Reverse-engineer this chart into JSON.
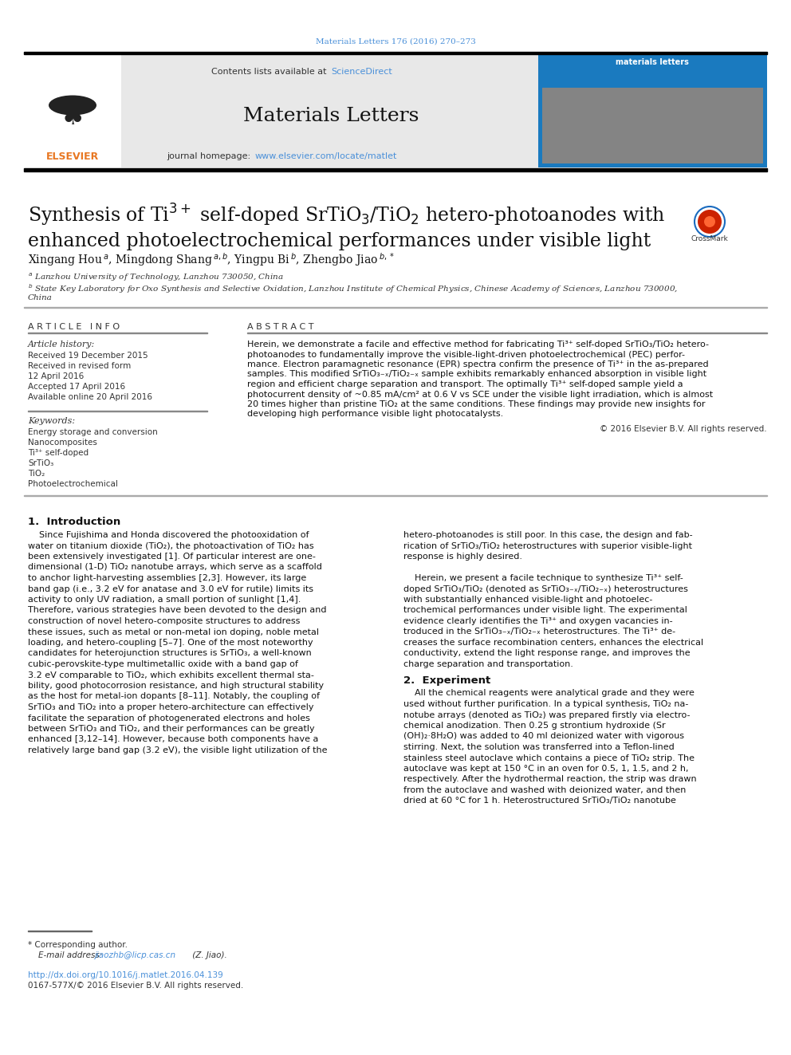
{
  "page_width": 9.92,
  "page_height": 13.23,
  "bg_color": "#ffffff",
  "header_citation": "Materials Letters 176 (2016) 270–273",
  "header_citation_color": "#4a90d9",
  "journal_name": "Materials Letters",
  "contents_text": "Contents lists available at ",
  "sciencedirect_text": "ScienceDirect",
  "sciencedirect_color": "#4a90d9",
  "homepage_text": "journal homepage: ",
  "homepage_url": "www.elsevier.com/locate/matlet",
  "homepage_url_color": "#4a90d9",
  "header_bg": "#e8e8e8",
  "article_info_header": "A R T I C L E   I N F O",
  "article_history_header": "Article history:",
  "article_history": [
    "Received 19 December 2015",
    "Received in revised form",
    "12 April 2016",
    "Accepted 17 April 2016",
    "Available online 20 April 2016"
  ],
  "keywords_header": "Keywords:",
  "keywords": [
    "Energy storage and conversion",
    "Nanocomposites",
    "Ti³⁺ self-doped",
    "SrTiO₃",
    "TiO₂",
    "Photoelectrochemical"
  ],
  "abstract_header": "A B S T R A C T",
  "abstract_lines": [
    "Herein, we demonstrate a facile and effective method for fabricating Ti³⁺ self-doped SrTiO₃/TiO₂ hetero-",
    "photoanodes to fundamentally improve the visible-light-driven photoelectrochemical (PEC) perfor-",
    "mance. Electron paramagnetic resonance (EPR) spectra confirm the presence of Ti³⁺ in the as-prepared",
    "samples. This modified SrTiO₃₋ₓ/TiO₂₋ₓ sample exhibits remarkably enhanced absorption in visible light",
    "region and efficient charge separation and transport. The optimally Ti³⁺ self-doped sample yield a",
    "photocurrent density of ~0.85 mA/cm² at 0.6 V vs SCE under the visible light irradiation, which is almost",
    "20 times higher than pristine TiO₂ at the same conditions. These findings may provide new insights for",
    "developing high performance visible light photocatalysts."
  ],
  "copyright_text": "© 2016 Elsevier B.V. All rights reserved.",
  "section1_header": "1.  Introduction",
  "intro_col1": [
    "    Since Fujishima and Honda discovered the photooxidation of",
    "water on titanium dioxide (TiO₂), the photoactivation of TiO₂ has",
    "been extensively investigated [1]. Of particular interest are one-",
    "dimensional (1-D) TiO₂ nanotube arrays, which serve as a scaffold",
    "to anchor light-harvesting assemblies [2,3]. However, its large",
    "band gap (i.e., 3.2 eV for anatase and 3.0 eV for rutile) limits its",
    "activity to only UV radiation, a small portion of sunlight [1,4].",
    "Therefore, various strategies have been devoted to the design and",
    "construction of novel hetero-composite structures to address",
    "these issues, such as metal or non-metal ion doping, noble metal",
    "loading, and hetero-coupling [5–7]. One of the most noteworthy",
    "candidates for heterojunction structures is SrTiO₃, a well-known",
    "cubic-perovskite-type multimetallic oxide with a band gap of",
    "3.2 eV comparable to TiO₂, which exhibits excellent thermal sta-",
    "bility, good photocorrosion resistance, and high structural stability",
    "as the host for metal-ion dopants [8–11]. Notably, the coupling of",
    "SrTiO₃ and TiO₂ into a proper hetero-architecture can effectively",
    "facilitate the separation of photogenerated electrons and holes",
    "between SrTiO₃ and TiO₂, and their performances can be greatly",
    "enhanced [3,12–14]. However, because both components have a",
    "relatively large band gap (3.2 eV), the visible light utilization of the"
  ],
  "intro_col2": [
    "hetero-photoanodes is still poor. In this case, the design and fab-",
    "rication of SrTiO₃/TiO₂ heterostructures with superior visible-light",
    "response is highly desired.",
    "",
    "    Herein, we present a facile technique to synthesize Ti³⁺ self-",
    "doped SrTiO₃/TiO₂ (denoted as SrTiO₃₋ₓ/TiO₂₋ₓ) heterostructures",
    "with substantially enhanced visible-light and photoelec-",
    "trochemical performances under visible light. The experimental",
    "evidence clearly identifies the Ti³⁺ and oxygen vacancies in-",
    "troduced in the SrTiO₃₋ₓ/TiO₂₋ₓ heterostructures. The Ti³⁺ de-",
    "creases the surface recombination centers, enhances the electrical",
    "conductivity, extend the light response range, and improves the",
    "charge separation and transportation."
  ],
  "section2_header": "2.  Experiment",
  "exp_col2": [
    "    All the chemical reagents were analytical grade and they were",
    "used without further purification. In a typical synthesis, TiO₂ na-",
    "notube arrays (denoted as TiO₂) was prepared firstly via electro-",
    "chemical anodization. Then 0.25 g strontium hydroxide (Sr",
    "(OH)₂·8H₂O) was added to 40 ml deionized water with vigorous",
    "stirring. Next, the solution was transferred into a Teflon-lined",
    "stainless steel autoclave which contains a piece of TiO₂ strip. The",
    "autoclave was kept at 150 °C in an oven for 0.5, 1, 1.5, and 2 h,",
    "respectively. After the hydrothermal reaction, the strip was drawn",
    "from the autoclave and washed with deionized water, and then",
    "dried at 60 °C for 1 h. Heterostructured SrTiO₃/TiO₂ nanotube"
  ],
  "footnote_star": "* Corresponding author.",
  "footnote_email_label": "    E-mail address: ",
  "footnote_email": "jiaozhb@licp.cas.cn",
  "footnote_email_color": "#4a90d9",
  "footnote_email_end": " (Z. Jiao).",
  "doi_text": "http://dx.doi.org/10.1016/j.matlet.2016.04.139",
  "doi_color": "#4a90d9",
  "issn_text": "0167-577X/© 2016 Elsevier B.V. All rights reserved.",
  "elsevier_color": "#e87722",
  "black": "#000000",
  "dark": "#111111",
  "mid": "#333333",
  "light": "#888888",
  "link": "#4a90d9"
}
